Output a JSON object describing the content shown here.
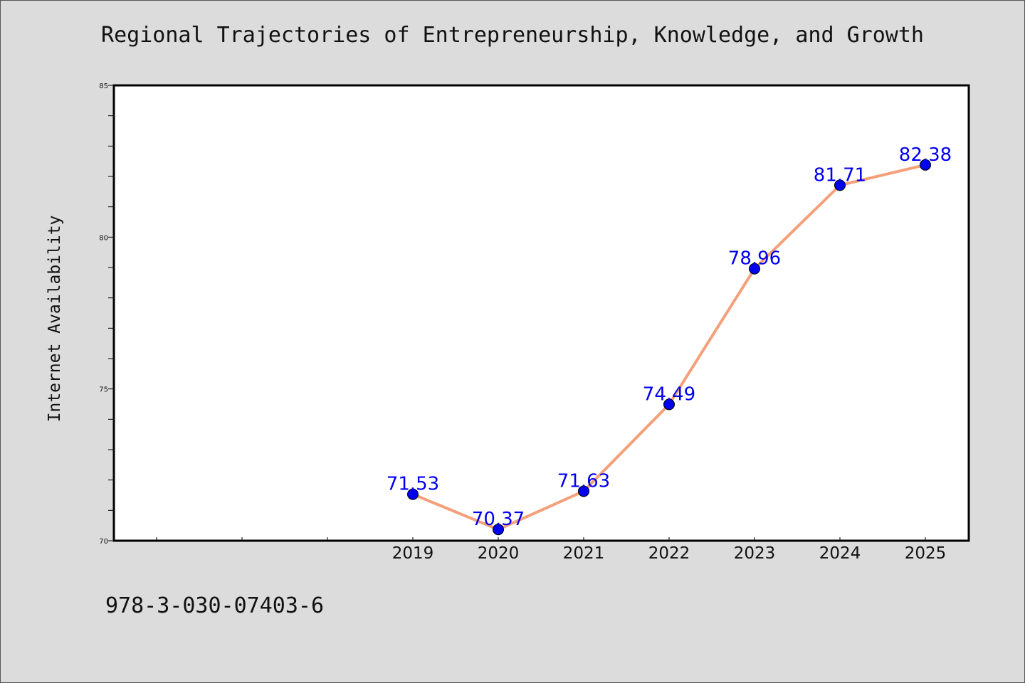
{
  "chart_data": {
    "type": "line",
    "title": "Regional Trajectories of Entrepreneurship, Knowledge, and Growth",
    "xlabel": "",
    "ylabel": "Internet Availability",
    "ylim": [
      70,
      85
    ],
    "yticks": [
      "70",
      "75",
      "80",
      "85"
    ],
    "x": [
      "2019",
      "2020",
      "2021",
      "2022",
      "2023",
      "2024",
      "2025"
    ],
    "series": [
      {
        "values": [
          71.53,
          70.37,
          71.63,
          74.49,
          78.96,
          81.71,
          82.38
        ],
        "labels": [
          "71.53",
          "70.37",
          "71.63",
          "74.49",
          "78.96",
          "81.71",
          "82.38"
        ],
        "line_color": "#f4a07a",
        "marker_color": "#0000ee"
      }
    ],
    "grid": false,
    "legend": "none",
    "colors": {
      "background": "#dcdcdc",
      "plot_background": "#ffffff"
    }
  },
  "footer": {
    "code": "978-3-030-07403-6"
  }
}
